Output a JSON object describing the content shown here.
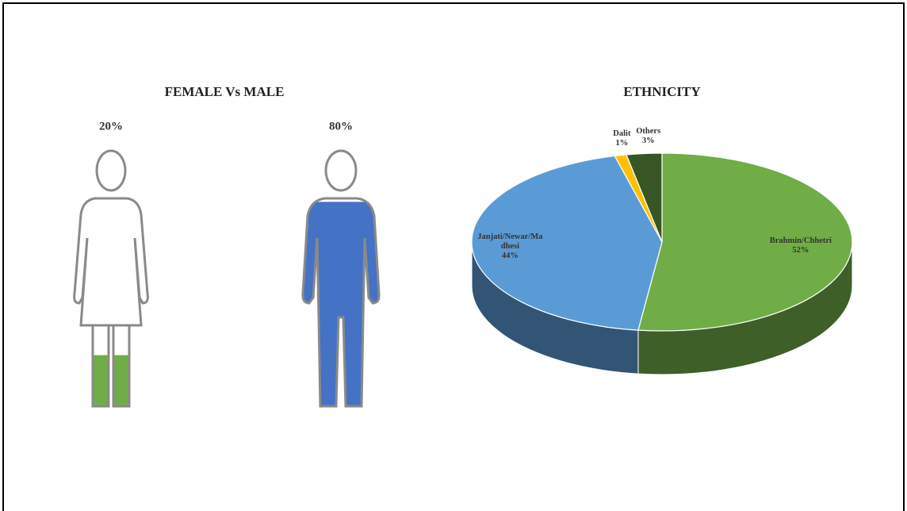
{
  "chart_data": [
    {
      "type": "pictogram",
      "title": "FEMALE Vs MALE",
      "values": [
        20,
        80
      ],
      "value_labels": [
        "20%",
        "80%"
      ],
      "colors": [
        "#70ad47",
        "#4472c4"
      ]
    },
    {
      "type": "pie",
      "title": "ETHNICITY",
      "categories": [
        "Brahmin/Chhetri",
        "Janjati/Newar/Madhesi",
        "Dalit",
        "Others"
      ],
      "values": [
        52,
        44,
        1,
        3
      ],
      "value_labels": [
        "52%",
        "44%",
        "1%",
        "3%"
      ],
      "colors": [
        "#70ad47",
        "#5b9bd5",
        "#ffc000",
        "#375623"
      ]
    }
  ]
}
